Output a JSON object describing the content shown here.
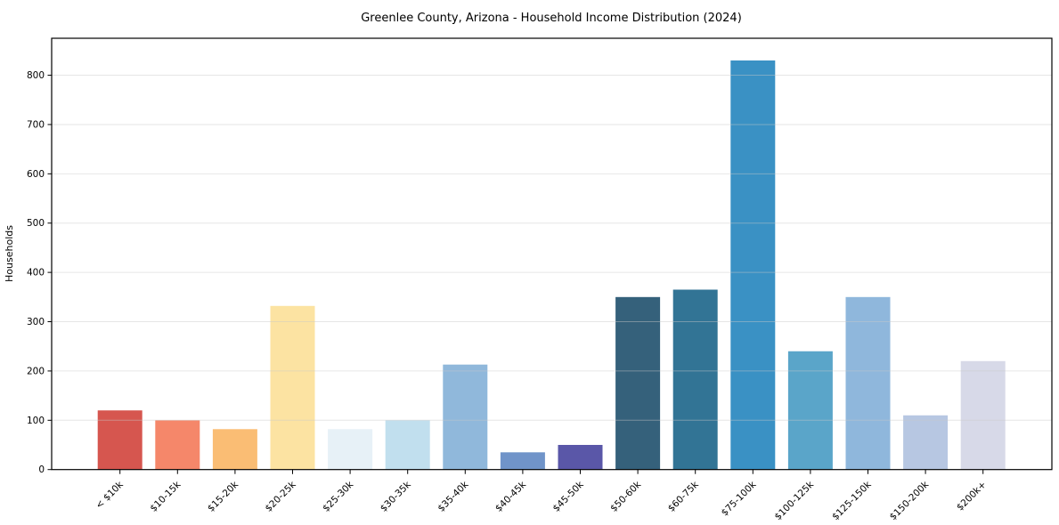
{
  "chart_data": {
    "type": "bar",
    "title": "Greenlee County, Arizona - Household Income Distribution (2024)",
    "xlabel": "",
    "ylabel": "Households",
    "categories": [
      "< $10k",
      "$10-15k",
      "$15-20k",
      "$20-25k",
      "$25-30k",
      "$30-35k",
      "$35-40k",
      "$40-45k",
      "$45-50k",
      "$50-60k",
      "$60-75k",
      "$75-100k",
      "$100-125k",
      "$125-150k",
      "$150-200k",
      "$200k+"
    ],
    "values": [
      120,
      100,
      82,
      332,
      82,
      100,
      213,
      35,
      50,
      350,
      365,
      830,
      240,
      350,
      110,
      220
    ],
    "bar_colors": [
      "#d6564f",
      "#f5876a",
      "#fabd74",
      "#fce3a2",
      "#e7f1f7",
      "#c1dfee",
      "#90b8db",
      "#7094c9",
      "#5a57a8",
      "#35617b",
      "#327495",
      "#3a91c4",
      "#5aa5c9",
      "#8fb7dc",
      "#b7c7e2",
      "#d7d9e8"
    ],
    "y_ticks": [
      0,
      100,
      200,
      300,
      400,
      500,
      600,
      700,
      800
    ],
    "ylim": [
      0,
      875
    ],
    "grid": true,
    "grid_color": "#e6e6e6",
    "spine_color": "#000000",
    "background": "#ffffff",
    "legend_position": "none"
  }
}
